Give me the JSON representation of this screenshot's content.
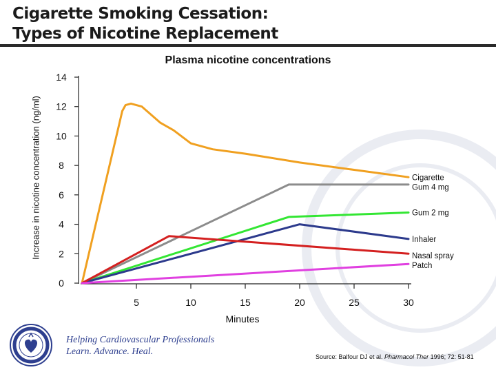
{
  "header": {
    "title_line1": "Cigarette Smoking Cessation:",
    "title_line2": "Types of Nicotine Replacement"
  },
  "footer": {
    "tagline_line1": "Helping Cardiovascular Professionals",
    "tagline_line2": "Learn. Advance. Heal.",
    "source_prefix": "Source: Balfour DJ et al. ",
    "source_journal": "Pharmacol Ther",
    "source_suffix": " 1996; 72: 51-81"
  },
  "colors": {
    "cigarette": "#f0a020",
    "gum4": "#8c8c8c",
    "gum2": "#33e633",
    "inhaler": "#2c3a8c",
    "nasal": "#d42020",
    "patch": "#e040e0"
  },
  "chart_data": {
    "type": "line",
    "title": "Plasma nicotine concentrations",
    "xlabel": "Minutes",
    "ylabel": "Increase in nicotine concentration (ng/ml)",
    "xlim": [
      -5.5,
      30
    ],
    "ylim": [
      0,
      14
    ],
    "xticks": [
      5,
      10,
      15,
      20,
      25,
      30
    ],
    "yticks": [
      0,
      2,
      4,
      6,
      8,
      10,
      12,
      14
    ],
    "legend": "labels at line ends (right)",
    "grid": false,
    "series": [
      {
        "name": "Cigarette",
        "color_key": "cigarette",
        "x": [
          0,
          3.7,
          4,
          4.5,
          5.5,
          7.2,
          8.4,
          10,
          12,
          15,
          20,
          25,
          30
        ],
        "y": [
          0,
          11.7,
          12.1,
          12.2,
          12.0,
          10.9,
          10.4,
          9.5,
          9.1,
          8.8,
          8.2,
          7.7,
          7.2
        ]
      },
      {
        "name": "Gum 4 mg",
        "color_key": "gum4",
        "x": [
          0,
          19,
          30
        ],
        "y": [
          0,
          6.7,
          6.7
        ]
      },
      {
        "name": "Gum 2 mg",
        "color_key": "gum2",
        "x": [
          0,
          19,
          30
        ],
        "y": [
          0,
          4.5,
          4.8
        ]
      },
      {
        "name": "Inhaler",
        "color_key": "inhaler",
        "x": [
          0,
          20,
          30
        ],
        "y": [
          0,
          4.0,
          3.0
        ]
      },
      {
        "name": "Nasal spray",
        "color_key": "nasal",
        "x": [
          0,
          8,
          30
        ],
        "y": [
          0,
          3.2,
          2.0
        ]
      },
      {
        "name": "Patch",
        "color_key": "patch",
        "x": [
          0,
          30
        ],
        "y": [
          0,
          1.3
        ]
      }
    ],
    "end_labels": [
      {
        "lines": [
          "Cigarette",
          "Gum 4 mg"
        ],
        "y": 6.85
      },
      {
        "lines": [
          "Gum 2 mg"
        ],
        "y": 4.8
      },
      {
        "lines": [
          "Inhaler"
        ],
        "y": 3.0
      },
      {
        "lines": [
          "Nasal spray",
          "Patch"
        ],
        "y": 1.55
      }
    ]
  }
}
